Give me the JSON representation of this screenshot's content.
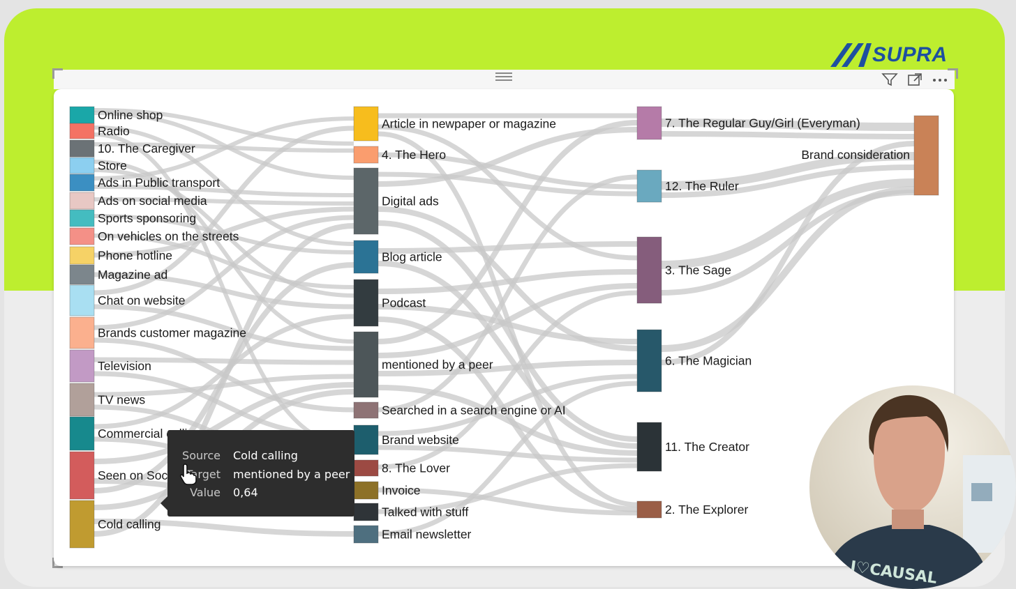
{
  "brand": {
    "logo_text": "SUPRA",
    "accent_color": "#bdee2f",
    "logo_color": "#1d4fa0"
  },
  "visual_header": {
    "drag_icon": "drag-handle-icon",
    "filter_icon": "filter-icon",
    "focus_icon": "focus-mode-icon",
    "more_icon": "more-options-icon"
  },
  "sankey": {
    "link_color": "#c8c8c8",
    "columns": [
      [
        {
          "label": "Online shop",
          "color": "#1aa7a8"
        },
        {
          "label": "Radio",
          "color": "#f47264"
        },
        {
          "label": "10. The Caregiver",
          "color": "#6b7276"
        },
        {
          "label": "Store",
          "color": "#8ccff0"
        },
        {
          "label": "Ads in Public transport",
          "color": "#3b8fc2"
        },
        {
          "label": "Ads on social media",
          "color": "#e8c8c4"
        },
        {
          "label": "Sports sponsoring",
          "color": "#44bcc0"
        },
        {
          "label": "On vehicles on the streets",
          "color": "#f49087"
        },
        {
          "label": "Phone hotline",
          "color": "#f6d266"
        },
        {
          "label": "Magazine ad",
          "color": "#7c868c"
        },
        {
          "label": "Chat on website",
          "color": "#a9dff2"
        },
        {
          "label": "Brands customer magazine",
          "color": "#fbb08e"
        },
        {
          "label": "Television",
          "color": "#c29ac5"
        },
        {
          "label": "TV news",
          "color": "#b1a09a"
        },
        {
          "label": "Commercial calling",
          "color": "#17898d"
        },
        {
          "label": "Seen on Social Media",
          "color": "#d35c5c"
        },
        {
          "label": "Cold calling",
          "color": "#c09b30"
        }
      ],
      [
        {
          "label": "Article in newpaper or magazine",
          "color": "#f7bd1d"
        },
        {
          "label": "4. The Hero",
          "color": "#fa9d6e"
        },
        {
          "label": "Digital ads",
          "color": "#5c6669"
        },
        {
          "label": "Blog article",
          "color": "#2b7395"
        },
        {
          "label": "Podcast",
          "color": "#333c40"
        },
        {
          "label": "mentioned by a peer",
          "color": "#4d5659"
        },
        {
          "label": "Searched in a search engine or AI",
          "color": "#8e7375"
        },
        {
          "label": "Brand website",
          "color": "#1d5e6d"
        },
        {
          "label": "8. The Lover",
          "color": "#9c4a43"
        },
        {
          "label": "Invoice",
          "color": "#8d7127"
        },
        {
          "label": "Talked with stuff",
          "color": "#2f3438"
        },
        {
          "label": "Email newsletter",
          "color": "#4e6f7f"
        }
      ],
      [
        {
          "label": "7. The Regular Guy/Girl (Everyman)",
          "color": "#b57ba8"
        },
        {
          "label": "12. The Ruler",
          "color": "#6aa9bf"
        },
        {
          "label": "3. The Sage",
          "color": "#855d7c"
        },
        {
          "label": "6. The Magician",
          "color": "#27586a"
        },
        {
          "label": "11. The Creator",
          "color": "#2b3337"
        },
        {
          "label": "2. The Explorer",
          "color": "#9a5e47"
        }
      ],
      [
        {
          "label": "Brand consideration",
          "color": "#c98257"
        }
      ]
    ]
  },
  "tooltip": {
    "source_label": "Source",
    "source_value": "Cold calling",
    "target_label": "Target",
    "target_value": "mentioned by a peer",
    "value_label": "Value",
    "value_value": "0,64"
  },
  "webcam": {
    "shirt_text": "I♡CAUSAL"
  }
}
